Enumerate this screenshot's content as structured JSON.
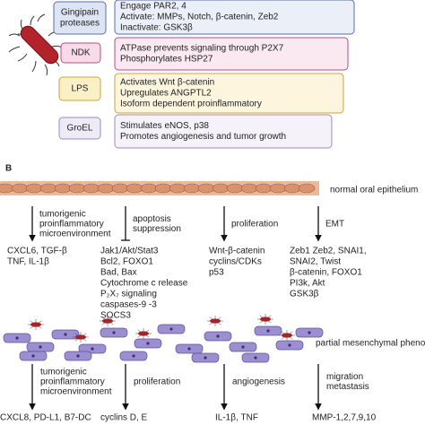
{
  "panel_a": {
    "items": [
      {
        "name_lines": [
          "Gingipain",
          "proteases"
        ],
        "fill": "#dde4f4",
        "stroke": "#5a6fa8",
        "lines": [
          "Engage PAR2, 4",
          "Activate: MMPs, Notch, β-catenin, Zeb2",
          "Inactivate: GSK3β"
        ]
      },
      {
        "name_lines": [
          "NDK"
        ],
        "fill": "#f8dbe8",
        "stroke": "#b5507d",
        "lines": [
          "ATPase prevents signaling through P2X7",
          "Phosphorylates HSP27"
        ]
      },
      {
        "name_lines": [
          "LPS"
        ],
        "fill": "#fbefc6",
        "stroke": "#c9a640",
        "lines": [
          "Activates Wnt β-catenin",
          "Upregulates ANGPTL2",
          "Isoform dependent proinflammatory"
        ]
      },
      {
        "name_lines": [
          "GroEL"
        ],
        "fill": "#eeeaf6",
        "stroke": "#9a8cc0",
        "lines": [
          "Stimulates eNOS, p38",
          "Promotes angiogenesis and tumor growth"
        ]
      }
    ]
  },
  "panel_b": {
    "label": "B",
    "epithelium_label": "normal oral epithelium",
    "mesenchymal_label": "partial mesenchymal phenotype",
    "upper_arrows": [
      [
        "tumorigenic",
        "proinflammatory",
        "microenvironment"
      ],
      [
        "apoptosis",
        "suppression"
      ],
      [
        "proliferation"
      ],
      [
        "EMT"
      ]
    ],
    "upper_lists": [
      [
        {
          "text": "CXCL6, TGF-β",
          "color": "#3d8b3d"
        },
        {
          "text": "TNF, IL-1β",
          "color": "#3d8b3d"
        }
      ],
      [
        {
          "text": "Jak1/Akt/Stat3",
          "color": "#3d8b3d"
        },
        {
          "text": "Bcl2, FOXO1",
          "color": "#3d8b3d"
        },
        {
          "text": "Bad, Bax",
          "color": "#c0392b"
        },
        {
          "text": "Cytochrome c release",
          "color": "#c0392b"
        },
        {
          "text": "P₂X₇ signaling",
          "color": "#c0392b"
        },
        {
          "text": "caspases-9 -3",
          "color": "#c0392b"
        },
        {
          "text": "SOCS3",
          "color": "#c0392b"
        }
      ],
      [
        {
          "text": "Wnt-β-catenin",
          "color": "#3d8b3d"
        },
        {
          "text": "cyclins/CDKs",
          "color": "#3d8b3d"
        },
        {
          "text": "p53",
          "color": "#c0392b"
        }
      ],
      [
        {
          "text": "Zeb1 Zeb2, SNAI1,",
          "color": "#3d8b3d"
        },
        {
          "text": "SNAI2, Twist",
          "color": "#3d8b3d"
        },
        {
          "text": "β-catenin, FOXO1",
          "color": "#3d8b3d"
        },
        {
          "text": "PI3k, Akt",
          "color": "#3d8b3d"
        },
        {
          "text": "GSK3β",
          "color": "#c0392b"
        }
      ]
    ],
    "lower_arrows": [
      [
        "tumorigenic",
        "proinflammatory",
        "microenvironment"
      ],
      [
        "proliferation"
      ],
      [
        "angiogenesis"
      ],
      [
        "migration",
        "metastasis"
      ]
    ],
    "lower_lists": [
      [
        {
          "text": "CXCL8, PD-L1, B7-DC",
          "color": "#3d8b3d"
        }
      ],
      [
        {
          "text": "cyclins D, E",
          "color": "#3d8b3d"
        }
      ],
      [
        {
          "text": "IL-1β, TNF",
          "color": "#3d8b3d"
        }
      ],
      [
        {
          "text": "MMP-1,2,7,9,10",
          "color": "#3d8b3d"
        }
      ]
    ]
  }
}
